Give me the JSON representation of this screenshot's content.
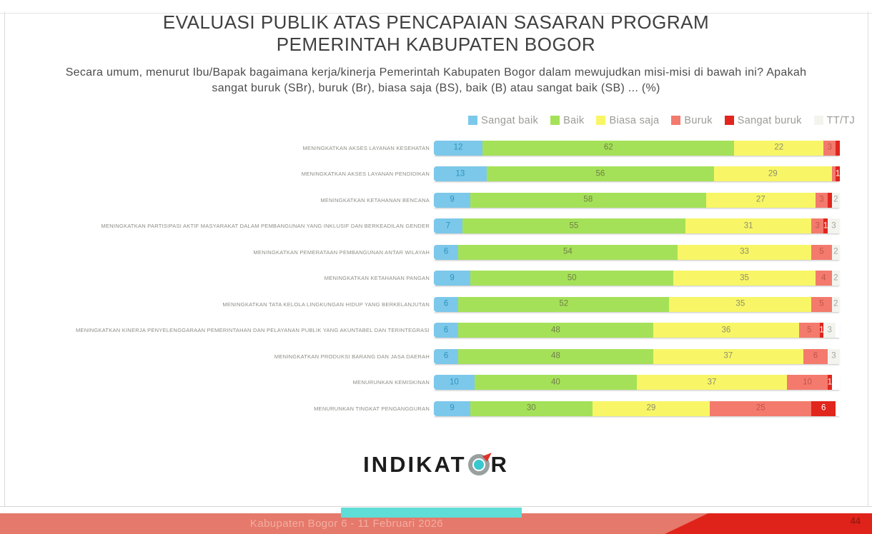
{
  "slide": {
    "title_line1": "EVALUASI PUBLIK ATAS PENCAPAIAN SASARAN PROGRAM",
    "title_line2": "PEMERINTAH KABUPATEN BOGOR",
    "subtitle": "Secara umum, menurut Ibu/Bapak bagaimana kerja/kinerja Pemerintah Kabupaten Bogor dalam mewujudkan misi-misi di bawah ini? Apakah sangat buruk (SBr), buruk (Br), biasa saja (BS), baik (B) atau sangat baik (SB) ... (%)"
  },
  "chart_data": {
    "type": "bar",
    "orientation": "horizontal",
    "stacked": true,
    "unit": "%",
    "xlim": [
      0,
      100
    ],
    "grid": false,
    "legend_position": "top-right",
    "series": [
      {
        "key": "sangat_baik",
        "name": "Sangat baik",
        "color": "#7CC8EA",
        "label_color": "#2d94c0"
      },
      {
        "key": "baik",
        "name": "Baik",
        "color": "#A5E158",
        "label_color": "#70804a"
      },
      {
        "key": "biasa_saja",
        "name": "Biasa saja",
        "color": "#F8F666",
        "label_color": "#8f8f70"
      },
      {
        "key": "buruk",
        "name": "Buruk",
        "color": "#F37A6D",
        "label_color": "#c0554b"
      },
      {
        "key": "sangat_buruk",
        "name": "Sangat buruk",
        "color": "#E1261D",
        "label_color": "#ffffff"
      },
      {
        "key": "tt",
        "name": "TT/TJ",
        "color": "#F4F4EF",
        "label_color": "#a6a6a0"
      }
    ],
    "rows": [
      {
        "category": "MENINGKATKAN AKSES LAYANAN KESEHATAN",
        "values": [
          12,
          62,
          22,
          3,
          1,
          0
        ],
        "labels": [
          "12",
          "62",
          "22",
          "3",
          "",
          ""
        ]
      },
      {
        "category": "MENINGKATKAN AKSES LAYANAN PENDIDIKAN",
        "values": [
          13,
          56,
          29,
          1,
          1,
          0
        ],
        "labels": [
          "13",
          "56",
          "29",
          "",
          "1",
          ""
        ]
      },
      {
        "category": "MENINGKATKAN KETAHANAN BENCANA",
        "values": [
          9,
          58,
          27,
          3,
          1,
          2
        ],
        "labels": [
          "9",
          "58",
          "27",
          "3",
          "",
          "2"
        ]
      },
      {
        "category": "MENINGKATKAN PARTISIPASI AKTIF MASYARAKAT DALAM PEMBANGUNAN YANG INKLUSIF DAN BERKEADILAN GENDER",
        "values": [
          7,
          55,
          31,
          3,
          1,
          3
        ],
        "labels": [
          "7",
          "55",
          "31",
          "3",
          "1",
          "3"
        ]
      },
      {
        "category": "MENINGKATKAN PEMERATAAN PEMBANGUNAN ANTAR WILAYAH",
        "values": [
          6,
          54,
          33,
          5,
          0,
          2
        ],
        "labels": [
          "6",
          "54",
          "33",
          "5",
          "",
          "2"
        ]
      },
      {
        "category": "MENINGKATKAN KETAHANAN PANGAN",
        "values": [
          9,
          50,
          35,
          4,
          0,
          2
        ],
        "labels": [
          "9",
          "50",
          "35",
          "4",
          "",
          "2"
        ]
      },
      {
        "category": "MENINGKATKAN TATA KELOLA LINGKUNGAN HIDUP YANG BERKELANJUTAN",
        "values": [
          6,
          52,
          35,
          5,
          0,
          2
        ],
        "labels": [
          "6",
          "52",
          "35",
          "5",
          "",
          "2"
        ]
      },
      {
        "category": "MENINGKATKAN KINERJA PENYELENGGARAAN PEMERINTAHAN DAN PELAYANAN PUBLIK YANG AKUNTABEL DAN TERINTEGRASI",
        "values": [
          6,
          48,
          36,
          5,
          1,
          3
        ],
        "labels": [
          "6",
          "48",
          "36",
          "5",
          "1",
          "3"
        ]
      },
      {
        "category": "MENINGKATKAN PRODUKSI BARANG DAN JASA DAERAH",
        "values": [
          6,
          48,
          37,
          6,
          0,
          3
        ],
        "labels": [
          "6",
          "48",
          "37",
          "6",
          "",
          "3"
        ]
      },
      {
        "category": "MENURUNKAN KEMISKINAN",
        "values": [
          10,
          40,
          37,
          10,
          1,
          0
        ],
        "labels": [
          "10",
          "40",
          "37",
          "10",
          "1",
          ""
        ]
      },
      {
        "category": "MENURUNKAN TINGKAT PENGANGGURAN",
        "values": [
          9,
          30,
          29,
          25,
          6,
          0
        ],
        "labels": [
          "9",
          "30",
          "29",
          "25",
          "6",
          ""
        ]
      }
    ]
  },
  "footer": {
    "logo_left": "INDIKAT",
    "logo_right": "R",
    "logo_o_icon": "compass-icon",
    "caption": "Kabupaten Bogor 6 - 11 Februari 2026",
    "page_number": "44",
    "colors": {
      "teal_accent": "#5FDDD7",
      "band_salmon": "#E5796B",
      "band_bright_red": "#E0231A",
      "caption_text": "#F3AEA3",
      "page_number_text": "#9C1B12"
    }
  }
}
